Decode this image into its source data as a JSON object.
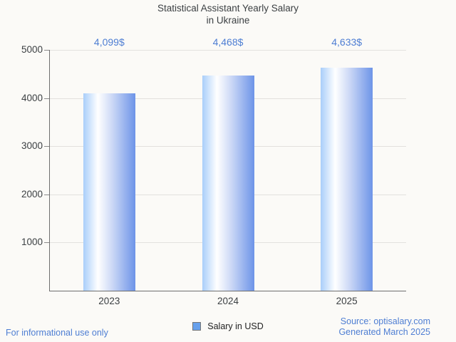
{
  "title": {
    "lines": [
      "Statistical Assistant Yearly Salary",
      "in Ukraine"
    ]
  },
  "chart_data": {
    "type": "bar",
    "title": "Statistical Assistant Yearly Salary in Ukraine",
    "categories": [
      "2023",
      "2024",
      "2025"
    ],
    "series": [
      {
        "name": "Salary in USD",
        "values": [
          4099,
          4468,
          4633
        ],
        "labels": [
          "4,099$",
          "4,468$",
          "4,633$"
        ]
      }
    ],
    "xlabel": "",
    "ylabel": "",
    "ylim": [
      0,
      5000
    ],
    "yticks": [
      1000,
      2000,
      3000,
      4000,
      5000
    ],
    "grid": true,
    "legend_position": "bottom"
  },
  "legend": {
    "label": "Salary in USD"
  },
  "footer": {
    "disclaimer": "For informational use only",
    "source": "Source: optisalary.com",
    "generated": "Generated March 2025"
  },
  "colors": {
    "background": "#fbfaf7",
    "bar_gradient_left": "#a9cefa",
    "bar_gradient_mid": "#ffffff",
    "bar_gradient_right": "#6d94e8",
    "annotation_blue": "#4e7ed3",
    "footer_blue": "#4e7ed3",
    "legend_marker": "#67a0ec",
    "axis": "#6e6e6e",
    "gridline": "#e3e1de",
    "text_dark": "#3c4043"
  }
}
